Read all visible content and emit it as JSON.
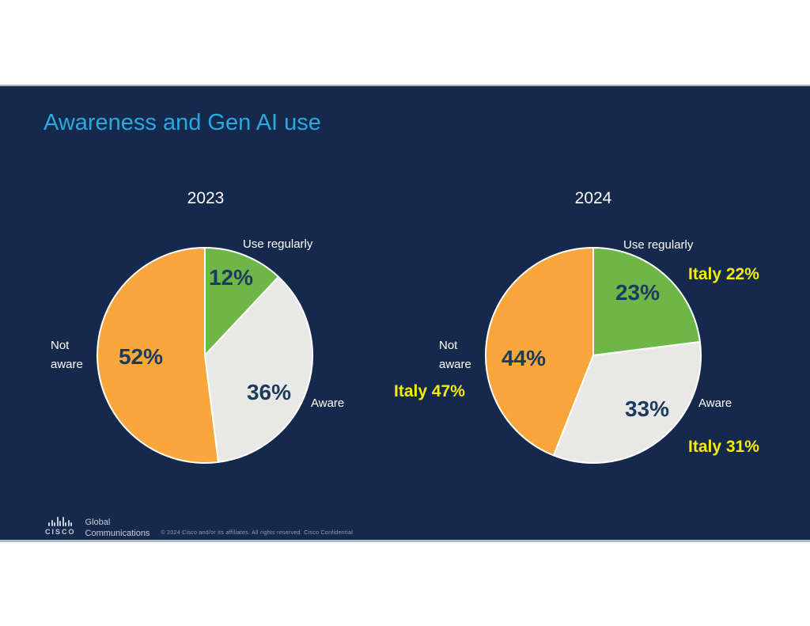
{
  "slide": {
    "title": "Awareness and Gen AI use",
    "background_color": "#14294B",
    "title_color": "#2AA9E0",
    "highlight_color": "#F6EB0A"
  },
  "chart_data": [
    {
      "type": "pie",
      "title": "2023",
      "start_angle_deg": 0,
      "direction": "clockwise",
      "legend_position": "around-slices",
      "slices": [
        {
          "label": "Use regularly",
          "value": 12,
          "data_label": "12%",
          "color": "#6FB648"
        },
        {
          "label": "Aware",
          "value": 36,
          "data_label": "36%",
          "color": "#E8E8E6"
        },
        {
          "label": "Not aware",
          "value": 52,
          "data_label": "52%",
          "color": "#F9A63C"
        }
      ]
    },
    {
      "type": "pie",
      "title": "2024",
      "start_angle_deg": 0,
      "direction": "clockwise",
      "legend_position": "around-slices",
      "slices": [
        {
          "label": "Use regularly",
          "value": 23,
          "data_label": "23%",
          "color": "#6FB648",
          "callout": "Italy 22%"
        },
        {
          "label": "Aware",
          "value": 33,
          "data_label": "33%",
          "color": "#E8E8E6",
          "callout": "Italy 31%"
        },
        {
          "label": "Not aware",
          "value": 44,
          "data_label": "44%",
          "color": "#F9A63C",
          "callout": "Italy 47%"
        }
      ]
    }
  ],
  "footer": {
    "logo_wordmark": "CISCO",
    "department": "Global\nCommunications",
    "copyright": "© 2024 Cisco and/or its affiliates. All rights reserved. Cisco Confidential"
  }
}
